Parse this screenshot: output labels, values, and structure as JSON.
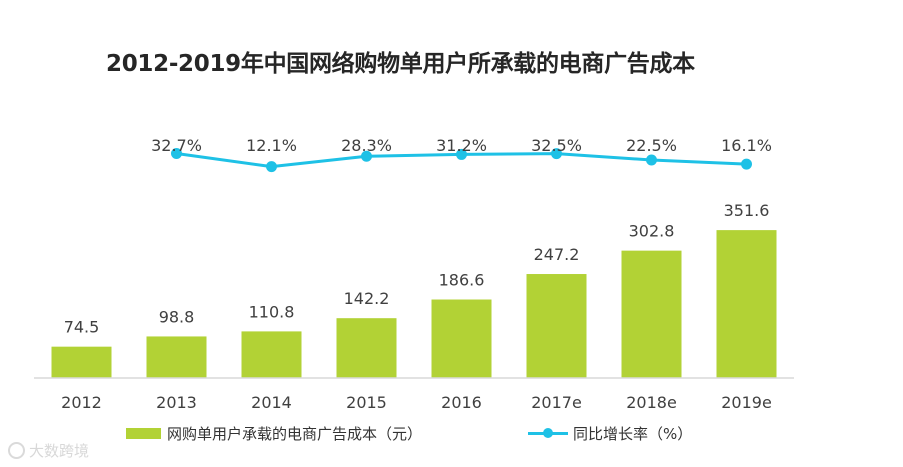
{
  "title": "2012-2019年中国网络购物单用户所承载的电商广告成本",
  "colors": {
    "bar": "#b2d235",
    "line": "#1ec1e6",
    "axis": "#d9d9d9",
    "text": "#404040"
  },
  "chart_data": {
    "type": "bar+line",
    "title": "2012-2019年中国网络购物单用户所承载的电商广告成本",
    "categories": [
      "2012",
      "2013",
      "2014",
      "2015",
      "2016",
      "2017e",
      "2018e",
      "2019e"
    ],
    "series": [
      {
        "name": "网购单用户承载的电商广告成本（元）",
        "type": "bar",
        "values": [
          74.5,
          98.8,
          110.8,
          142.2,
          186.6,
          247.2,
          302.8,
          351.6
        ],
        "labels": [
          "74.5",
          "98.8",
          "110.8",
          "142.2",
          "186.6",
          "247.2",
          "302.8",
          "351.6"
        ]
      },
      {
        "name": "同比增长率（%）",
        "type": "line",
        "values": [
          32.7,
          12.1,
          28.3,
          31.2,
          32.5,
          22.5,
          16.1
        ],
        "x": [
          "2013",
          "2014",
          "2015",
          "2016",
          "2017e",
          "2018e",
          "2019e"
        ],
        "labels": [
          "32.7%",
          "12.1%",
          "28.3%",
          "31.2%",
          "32.5%",
          "22.5%",
          "16.1%"
        ]
      }
    ],
    "legend": {
      "position": "bottom"
    },
    "grid": false
  },
  "legend": {
    "bar_label": "网购单用户承载的电商广告成本（元）",
    "line_label": "同比增长率（%）"
  },
  "watermark": "大数跨境"
}
